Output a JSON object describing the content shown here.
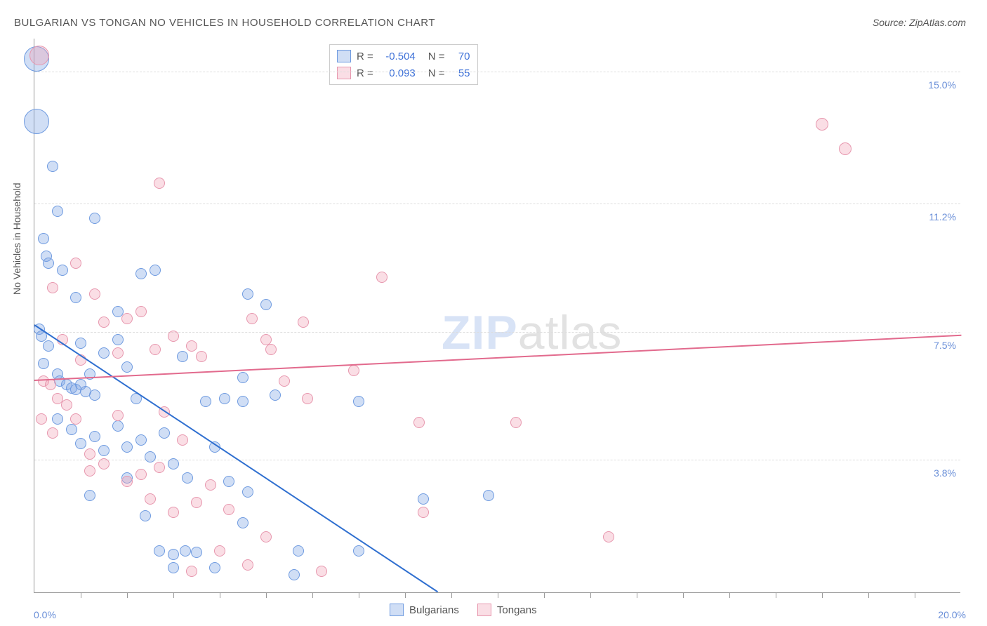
{
  "title": "BULGARIAN VS TONGAN NO VEHICLES IN HOUSEHOLD CORRELATION CHART",
  "source_label": "Source: ZipAtlas.com",
  "watermark_a": "ZIP",
  "watermark_b": "atlas",
  "yaxis_label": "No Vehicles in Household",
  "chart": {
    "type": "scatter",
    "xlim": [
      0.0,
      20.0
    ],
    "ylim": [
      0.0,
      16.0
    ],
    "x_tick_step": 1.0,
    "y_gridlines": [
      3.8,
      7.5,
      11.2,
      15.0
    ],
    "y_grid_labels": [
      "3.8%",
      "7.5%",
      "11.2%",
      "15.0%"
    ],
    "xlim_labels": [
      "0.0%",
      "20.0%"
    ],
    "background_color": "#ffffff",
    "grid_color": "#dddddd",
    "axis_color": "#999999",
    "label_color": "#6a8fd8"
  },
  "series": [
    {
      "name": "Bulgarians",
      "fill": "rgba(120,160,225,0.35)",
      "stroke": "#6f9be0",
      "trend_color": "#2f6fd0",
      "R": "-0.504",
      "N": "70",
      "trend": {
        "x1": 0.0,
        "y1": 7.7,
        "x2": 8.7,
        "y2": 0.0
      },
      "points": [
        {
          "x": 0.05,
          "y": 15.4,
          "r": 18
        },
        {
          "x": 0.05,
          "y": 13.6,
          "r": 18
        },
        {
          "x": 0.4,
          "y": 12.3,
          "r": 8
        },
        {
          "x": 0.5,
          "y": 11.0,
          "r": 8
        },
        {
          "x": 0.2,
          "y": 10.2,
          "r": 8
        },
        {
          "x": 0.25,
          "y": 9.7,
          "r": 8
        },
        {
          "x": 0.3,
          "y": 9.5,
          "r": 8
        },
        {
          "x": 0.6,
          "y": 9.3,
          "r": 8
        },
        {
          "x": 1.3,
          "y": 10.8,
          "r": 8
        },
        {
          "x": 0.9,
          "y": 8.5,
          "r": 8
        },
        {
          "x": 0.1,
          "y": 7.6,
          "r": 8
        },
        {
          "x": 0.15,
          "y": 7.4,
          "r": 8
        },
        {
          "x": 0.3,
          "y": 7.1,
          "r": 8
        },
        {
          "x": 0.2,
          "y": 6.6,
          "r": 8
        },
        {
          "x": 0.5,
          "y": 6.3,
          "r": 8
        },
        {
          "x": 0.55,
          "y": 6.1,
          "r": 8
        },
        {
          "x": 0.7,
          "y": 6.0,
          "r": 8
        },
        {
          "x": 0.8,
          "y": 5.9,
          "r": 8
        },
        {
          "x": 0.9,
          "y": 5.85,
          "r": 8
        },
        {
          "x": 1.0,
          "y": 6.0,
          "r": 8
        },
        {
          "x": 1.1,
          "y": 5.8,
          "r": 8
        },
        {
          "x": 1.2,
          "y": 6.3,
          "r": 8
        },
        {
          "x": 1.3,
          "y": 5.7,
          "r": 8
        },
        {
          "x": 1.5,
          "y": 6.9,
          "r": 8
        },
        {
          "x": 1.8,
          "y": 7.3,
          "r": 8
        },
        {
          "x": 2.0,
          "y": 6.5,
          "r": 8
        },
        {
          "x": 2.3,
          "y": 9.2,
          "r": 8
        },
        {
          "x": 2.6,
          "y": 9.3,
          "r": 8
        },
        {
          "x": 1.8,
          "y": 8.1,
          "r": 8
        },
        {
          "x": 1.0,
          "y": 7.2,
          "r": 8
        },
        {
          "x": 3.2,
          "y": 6.8,
          "r": 8
        },
        {
          "x": 4.6,
          "y": 8.6,
          "r": 8
        },
        {
          "x": 3.7,
          "y": 5.5,
          "r": 8
        },
        {
          "x": 4.1,
          "y": 5.6,
          "r": 8
        },
        {
          "x": 4.5,
          "y": 5.5,
          "r": 8
        },
        {
          "x": 5.2,
          "y": 5.7,
          "r": 8
        },
        {
          "x": 5.0,
          "y": 8.3,
          "r": 8
        },
        {
          "x": 0.5,
          "y": 5.0,
          "r": 8
        },
        {
          "x": 0.8,
          "y": 4.7,
          "r": 8
        },
        {
          "x": 1.0,
          "y": 4.3,
          "r": 8
        },
        {
          "x": 1.3,
          "y": 4.5,
          "r": 8
        },
        {
          "x": 1.5,
          "y": 4.1,
          "r": 8
        },
        {
          "x": 1.8,
          "y": 4.8,
          "r": 8
        },
        {
          "x": 2.0,
          "y": 4.2,
          "r": 8
        },
        {
          "x": 2.3,
          "y": 4.4,
          "r": 8
        },
        {
          "x": 2.5,
          "y": 3.9,
          "r": 8
        },
        {
          "x": 2.8,
          "y": 4.6,
          "r": 8
        },
        {
          "x": 3.0,
          "y": 3.7,
          "r": 8
        },
        {
          "x": 3.3,
          "y": 3.3,
          "r": 8
        },
        {
          "x": 1.2,
          "y": 2.8,
          "r": 8
        },
        {
          "x": 2.4,
          "y": 2.2,
          "r": 8
        },
        {
          "x": 4.5,
          "y": 2.0,
          "r": 8
        },
        {
          "x": 2.0,
          "y": 3.3,
          "r": 8
        },
        {
          "x": 3.9,
          "y": 4.2,
          "r": 8
        },
        {
          "x": 4.2,
          "y": 3.2,
          "r": 8
        },
        {
          "x": 4.6,
          "y": 2.9,
          "r": 8
        },
        {
          "x": 2.7,
          "y": 1.2,
          "r": 8
        },
        {
          "x": 3.0,
          "y": 1.1,
          "r": 8
        },
        {
          "x": 3.25,
          "y": 1.2,
          "r": 8
        },
        {
          "x": 3.5,
          "y": 1.15,
          "r": 8
        },
        {
          "x": 3.0,
          "y": 0.7,
          "r": 8
        },
        {
          "x": 5.6,
          "y": 0.5,
          "r": 8
        },
        {
          "x": 3.9,
          "y": 0.7,
          "r": 8
        },
        {
          "x": 5.7,
          "y": 1.2,
          "r": 8
        },
        {
          "x": 7.0,
          "y": 5.5,
          "r": 8
        },
        {
          "x": 8.4,
          "y": 2.7,
          "r": 8
        },
        {
          "x": 9.8,
          "y": 2.8,
          "r": 8
        },
        {
          "x": 7.0,
          "y": 1.2,
          "r": 8
        },
        {
          "x": 4.5,
          "y": 6.2,
          "r": 8
        },
        {
          "x": 2.2,
          "y": 5.6,
          "r": 8
        }
      ]
    },
    {
      "name": "Tongans",
      "fill": "rgba(240,160,180,0.35)",
      "stroke": "#e797ae",
      "trend_color": "#e26a8d",
      "R": "0.093",
      "N": "55",
      "trend": {
        "x1": 0.0,
        "y1": 6.1,
        "x2": 20.0,
        "y2": 7.4
      },
      "points": [
        {
          "x": 0.1,
          "y": 15.5,
          "r": 14
        },
        {
          "x": 17.0,
          "y": 13.5,
          "r": 9
        },
        {
          "x": 17.5,
          "y": 12.8,
          "r": 9
        },
        {
          "x": 2.7,
          "y": 11.8,
          "r": 8
        },
        {
          "x": 0.9,
          "y": 9.5,
          "r": 8
        },
        {
          "x": 1.3,
          "y": 8.6,
          "r": 8
        },
        {
          "x": 0.4,
          "y": 8.8,
          "r": 8
        },
        {
          "x": 7.5,
          "y": 9.1,
          "r": 8
        },
        {
          "x": 1.5,
          "y": 7.8,
          "r": 8
        },
        {
          "x": 2.0,
          "y": 7.9,
          "r": 8
        },
        {
          "x": 2.3,
          "y": 8.1,
          "r": 8
        },
        {
          "x": 1.8,
          "y": 6.9,
          "r": 8
        },
        {
          "x": 2.6,
          "y": 7.0,
          "r": 8
        },
        {
          "x": 3.0,
          "y": 7.4,
          "r": 8
        },
        {
          "x": 3.4,
          "y": 7.1,
          "r": 8
        },
        {
          "x": 3.6,
          "y": 6.8,
          "r": 8
        },
        {
          "x": 4.7,
          "y": 7.9,
          "r": 8
        },
        {
          "x": 5.0,
          "y": 7.3,
          "r": 8
        },
        {
          "x": 5.1,
          "y": 7.0,
          "r": 8
        },
        {
          "x": 5.8,
          "y": 7.8,
          "r": 8
        },
        {
          "x": 6.9,
          "y": 6.4,
          "r": 8
        },
        {
          "x": 5.9,
          "y": 5.6,
          "r": 8
        },
        {
          "x": 0.2,
          "y": 6.1,
          "r": 8
        },
        {
          "x": 0.35,
          "y": 6.0,
          "r": 8
        },
        {
          "x": 0.5,
          "y": 5.6,
          "r": 8
        },
        {
          "x": 0.7,
          "y": 5.4,
          "r": 8
        },
        {
          "x": 0.15,
          "y": 5.0,
          "r": 8
        },
        {
          "x": 0.4,
          "y": 4.6,
          "r": 8
        },
        {
          "x": 0.9,
          "y": 5.0,
          "r": 8
        },
        {
          "x": 1.2,
          "y": 4.0,
          "r": 8
        },
        {
          "x": 1.2,
          "y": 3.5,
          "r": 8
        },
        {
          "x": 1.5,
          "y": 3.7,
          "r": 8
        },
        {
          "x": 2.0,
          "y": 3.2,
          "r": 8
        },
        {
          "x": 2.3,
          "y": 3.4,
          "r": 8
        },
        {
          "x": 2.7,
          "y": 3.6,
          "r": 8
        },
        {
          "x": 2.5,
          "y": 2.7,
          "r": 8
        },
        {
          "x": 3.0,
          "y": 2.3,
          "r": 8
        },
        {
          "x": 3.5,
          "y": 2.6,
          "r": 8
        },
        {
          "x": 3.8,
          "y": 3.1,
          "r": 8
        },
        {
          "x": 4.2,
          "y": 2.4,
          "r": 8
        },
        {
          "x": 4.0,
          "y": 1.2,
          "r": 8
        },
        {
          "x": 4.6,
          "y": 0.8,
          "r": 8
        },
        {
          "x": 6.2,
          "y": 0.6,
          "r": 8
        },
        {
          "x": 5.0,
          "y": 1.6,
          "r": 8
        },
        {
          "x": 3.4,
          "y": 0.6,
          "r": 8
        },
        {
          "x": 8.3,
          "y": 4.9,
          "r": 8
        },
        {
          "x": 8.4,
          "y": 2.3,
          "r": 8
        },
        {
          "x": 10.4,
          "y": 4.9,
          "r": 8
        },
        {
          "x": 12.4,
          "y": 1.6,
          "r": 8
        },
        {
          "x": 2.8,
          "y": 5.2,
          "r": 8
        },
        {
          "x": 1.8,
          "y": 5.1,
          "r": 8
        },
        {
          "x": 3.2,
          "y": 4.4,
          "r": 8
        },
        {
          "x": 5.4,
          "y": 6.1,
          "r": 8
        },
        {
          "x": 1.0,
          "y": 6.7,
          "r": 8
        },
        {
          "x": 0.6,
          "y": 7.3,
          "r": 8
        }
      ]
    }
  ],
  "stats_prefix_r": "R =",
  "stats_prefix_n": "N ="
}
